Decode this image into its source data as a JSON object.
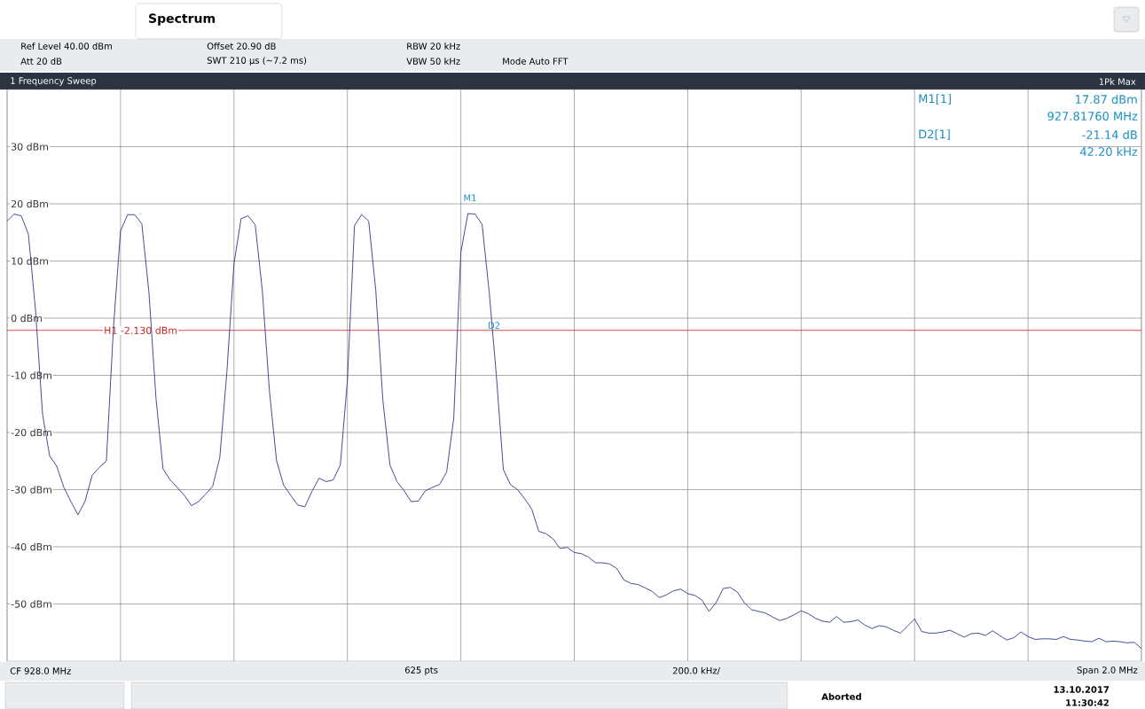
{
  "chart_data": {
    "type": "line",
    "title": "Spectrum",
    "categories": [
      null,
      null,
      null,
      null,
      null,
      null,
      null,
      null,
      null,
      null,
      null,
      null,
      null,
      null,
      null,
      null,
      null,
      null,
      null,
      null,
      null,
      null,
      null,
      null,
      null,
      null,
      null,
      null,
      null,
      null,
      null,
      null,
      null,
      null,
      null,
      null,
      null,
      null,
      null,
      null,
      null,
      null,
      null,
      null,
      null,
      null,
      null,
      null,
      null,
      null,
      null,
      null,
      null,
      null,
      null,
      null,
      null,
      null,
      null,
      null,
      null,
      null,
      null,
      null,
      null,
      null,
      null,
      null,
      null,
      null,
      null,
      null,
      null,
      null,
      null,
      null,
      null,
      null,
      null,
      null,
      null,
      null,
      null,
      null,
      null,
      null,
      null,
      null,
      null,
      null,
      null,
      null,
      null,
      null,
      null,
      null,
      null,
      null,
      null,
      null,
      null,
      null,
      null,
      null,
      null,
      null,
      null,
      null,
      null,
      null,
      null,
      null,
      null,
      null,
      null,
      null,
      null,
      null,
      null,
      null,
      null,
      null,
      null,
      null,
      null,
      null,
      null,
      null,
      null,
      null,
      null,
      null,
      null,
      null,
      null,
      null,
      null,
      null,
      null,
      null,
      null,
      null,
      null,
      null,
      null,
      null,
      null,
      null,
      null,
      null,
      null,
      null,
      null,
      null,
      null,
      null,
      null,
      null,
      null,
      null,
      null
    ],
    "values": [
      17.0,
      18.2,
      17.9,
      14.7,
      1.5,
      -16.8,
      -24.1,
      -25.9,
      -29.6,
      -32.1,
      -34.4,
      -32.0,
      -27.5,
      -26.1,
      -25.0,
      -1.7,
      15.3,
      18.1,
      18.1,
      16.5,
      4.6,
      -14.0,
      -26.4,
      -28.3,
      -29.6,
      -31.0,
      -32.8,
      -32.1,
      -30.8,
      -29.4,
      -24.4,
      -9.4,
      9.5,
      17.4,
      17.9,
      16.3,
      4.8,
      -12.7,
      -24.9,
      -29.2,
      -31.0,
      -32.7,
      -33.0,
      -30.3,
      -28.0,
      -28.6,
      -28.3,
      -25.7,
      -10.9,
      16.2,
      18.1,
      17.0,
      4.9,
      -14.3,
      -25.7,
      -28.6,
      -30.2,
      -32.1,
      -32.0,
      -30.2,
      -29.6,
      -29.1,
      -26.9,
      -17.5,
      11.5,
      18.3,
      18.2,
      16.4,
      4.6,
      -9.9,
      -26.5,
      -29.1,
      -30.0,
      -31.6,
      -33.4,
      -37.3,
      -37.7,
      -38.6,
      -40.3,
      -40.1,
      -41.0,
      -41.2,
      -41.8,
      -42.8,
      -42.8,
      -43.0,
      -43.8,
      -45.8,
      -46.4,
      -46.6,
      -47.2,
      -47.8,
      -48.9,
      -48.4,
      -47.7,
      -47.4,
      -48.2,
      -48.5,
      -49.3,
      -51.3,
      -49.8,
      -47.3,
      -47.1,
      -47.9,
      -49.8,
      -51.0,
      -51.3,
      -51.6,
      -52.3,
      -52.9,
      -52.5,
      -51.9,
      -51.2,
      -51.7,
      -52.5,
      -53.0,
      -53.2,
      -52.2,
      -53.2,
      -53.1,
      -52.8,
      -53.7,
      -54.3,
      -53.8,
      -54.0,
      -54.6,
      -55.1,
      -53.9,
      -52.6,
      -54.8,
      -55.1,
      -55.1,
      -54.9,
      -54.6,
      -55.2,
      -55.8,
      -55.2,
      -55.1,
      -55.5,
      -54.7,
      -55.5,
      -56.3,
      -55.9,
      -54.9,
      -55.7,
      -56.2,
      -56.1,
      -56.1,
      -56.2,
      -55.7,
      -56.2,
      -56.3,
      -56.5,
      -56.6,
      -56.0,
      -56.6,
      -56.5,
      -56.6,
      -56.8,
      -56.7,
      -57.8
    ],
    "color": "#2e3a8c",
    "ylim": [
      -60,
      40
    ],
    "yticks": [
      {
        "value": 30,
        "label": "30 dBm"
      },
      {
        "value": 20,
        "label": "20 dBm"
      },
      {
        "value": 10,
        "label": "10 dBm"
      },
      {
        "value": 0,
        "label": "0 dBm"
      },
      {
        "value": -10,
        "label": "-10 dBm"
      },
      {
        "value": -20,
        "label": "-20 dBm"
      },
      {
        "value": -30,
        "label": "-30 dBm"
      },
      {
        "value": -40,
        "label": "-40 dBm"
      },
      {
        "value": -50,
        "label": "-50 dBm"
      }
    ],
    "grid": true,
    "tick_labels": "y",
    "ref_lines": [
      {
        "axis": "y",
        "value": -2.13,
        "label": "H1 -2.130 dBm",
        "color": "#cc2222"
      }
    ],
    "annotations": [
      "Ref Level 40.00 dBm",
      "Offset 20.90 dB",
      "RBW 20 kHz",
      "Att 20 dB",
      "SWT 210 µs (~7.2 ms)",
      "VBW 50 kHz",
      "Mode Auto FFT",
      "1 Frequency Sweep",
      "1Pk Max",
      "M1[1]",
      "17.87 dBm",
      "927.81760 MHz",
      "D2[1]",
      "-21.14 dB",
      "42.20 kHz",
      "CF 928.0 MHz",
      "625 pts",
      "200.0 kHz/",
      "Span 2.0 MHz",
      "Aborted",
      "13.10.2017",
      "11:30:42",
      "M1",
      "D2"
    ]
  }
}
